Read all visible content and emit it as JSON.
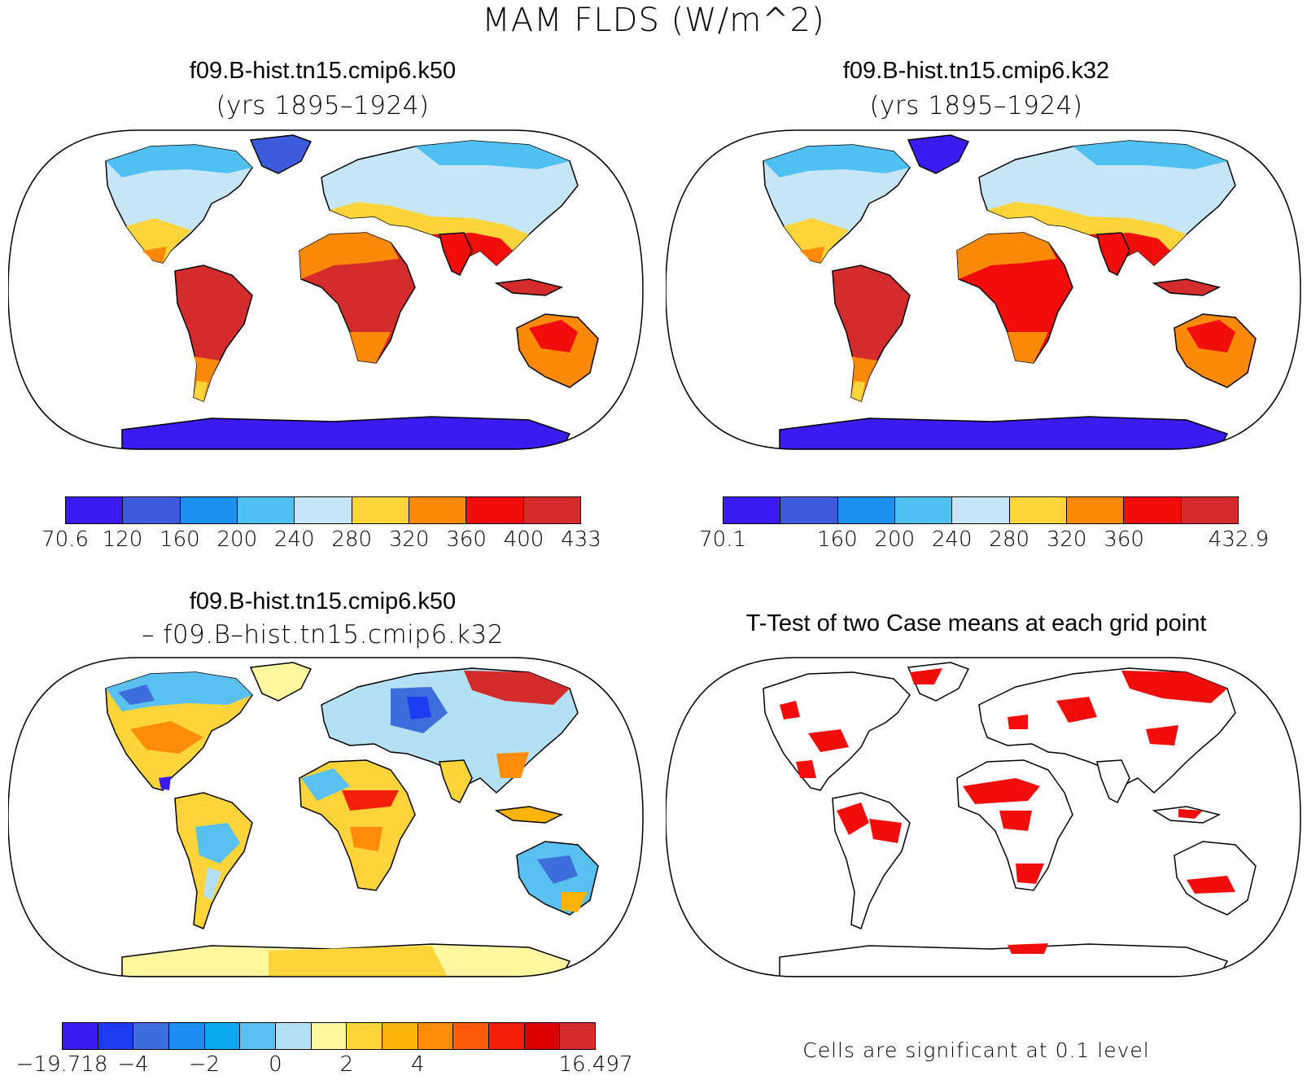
{
  "figure": {
    "title": "MAM FLDS (W/m^2)"
  },
  "panels": {
    "top_left": {
      "title": "f09.B-hist.tn15.cmip6.k50",
      "subtitle": "(yrs 1895–1924)"
    },
    "top_right": {
      "title": "f09.B-hist.tn15.cmip6.k32",
      "subtitle": "(yrs 1895–1924)"
    },
    "bottom_left": {
      "title": "f09.B-hist.tn15.cmip6.k50",
      "subtitle": "– f09.B–hist.tn15.cmip6.k32"
    },
    "bottom_right": {
      "title": "T-Test of two Case means at each grid point",
      "note": "Cells are significant at 0.1 level"
    }
  },
  "colorbars": {
    "cb1": {
      "colors": [
        "#3a1cf0",
        "#3d5bdc",
        "#1e90f0",
        "#4fc0f0",
        "#c6e6f6",
        "#fdd43a",
        "#fc8a0a",
        "#f20d0d",
        "#d42c2c"
      ],
      "labels": [
        "70.6",
        "120",
        "160",
        "200",
        "240",
        "280",
        "320",
        "360",
        "400",
        "433"
      ]
    },
    "cb2": {
      "colors": [
        "#3a1cf0",
        "#3d5bdc",
        "#1e90f0",
        "#4fc0f0",
        "#c6e6f6",
        "#fdd43a",
        "#fc8a0a",
        "#f20d0d",
        "#d42c2c"
      ],
      "labels": [
        "70.1",
        "",
        "160",
        "200",
        "240",
        "280",
        "320",
        "360",
        "",
        "432.9"
      ]
    },
    "cb3": {
      "colors": [
        "#3a1cf0",
        "#1e3cf0",
        "#3d6edc",
        "#1e8cf0",
        "#0aaaf0",
        "#5ac0f0",
        "#b4e0f4",
        "#fdf7a0",
        "#fdd43a",
        "#fcb40a",
        "#fc8c0a",
        "#fc5a0a",
        "#f2200a",
        "#dc0000",
        "#d42c2c"
      ],
      "labels": [
        "−19.718",
        "",
        "−4",
        "",
        "−2",
        "",
        "0",
        "",
        "2",
        "",
        "4",
        "",
        "",
        "",
        "",
        "16.497"
      ]
    }
  },
  "map_colors": {
    "ocean": "#ffffff",
    "coast": "#000000",
    "significant": "#f20d0d"
  }
}
